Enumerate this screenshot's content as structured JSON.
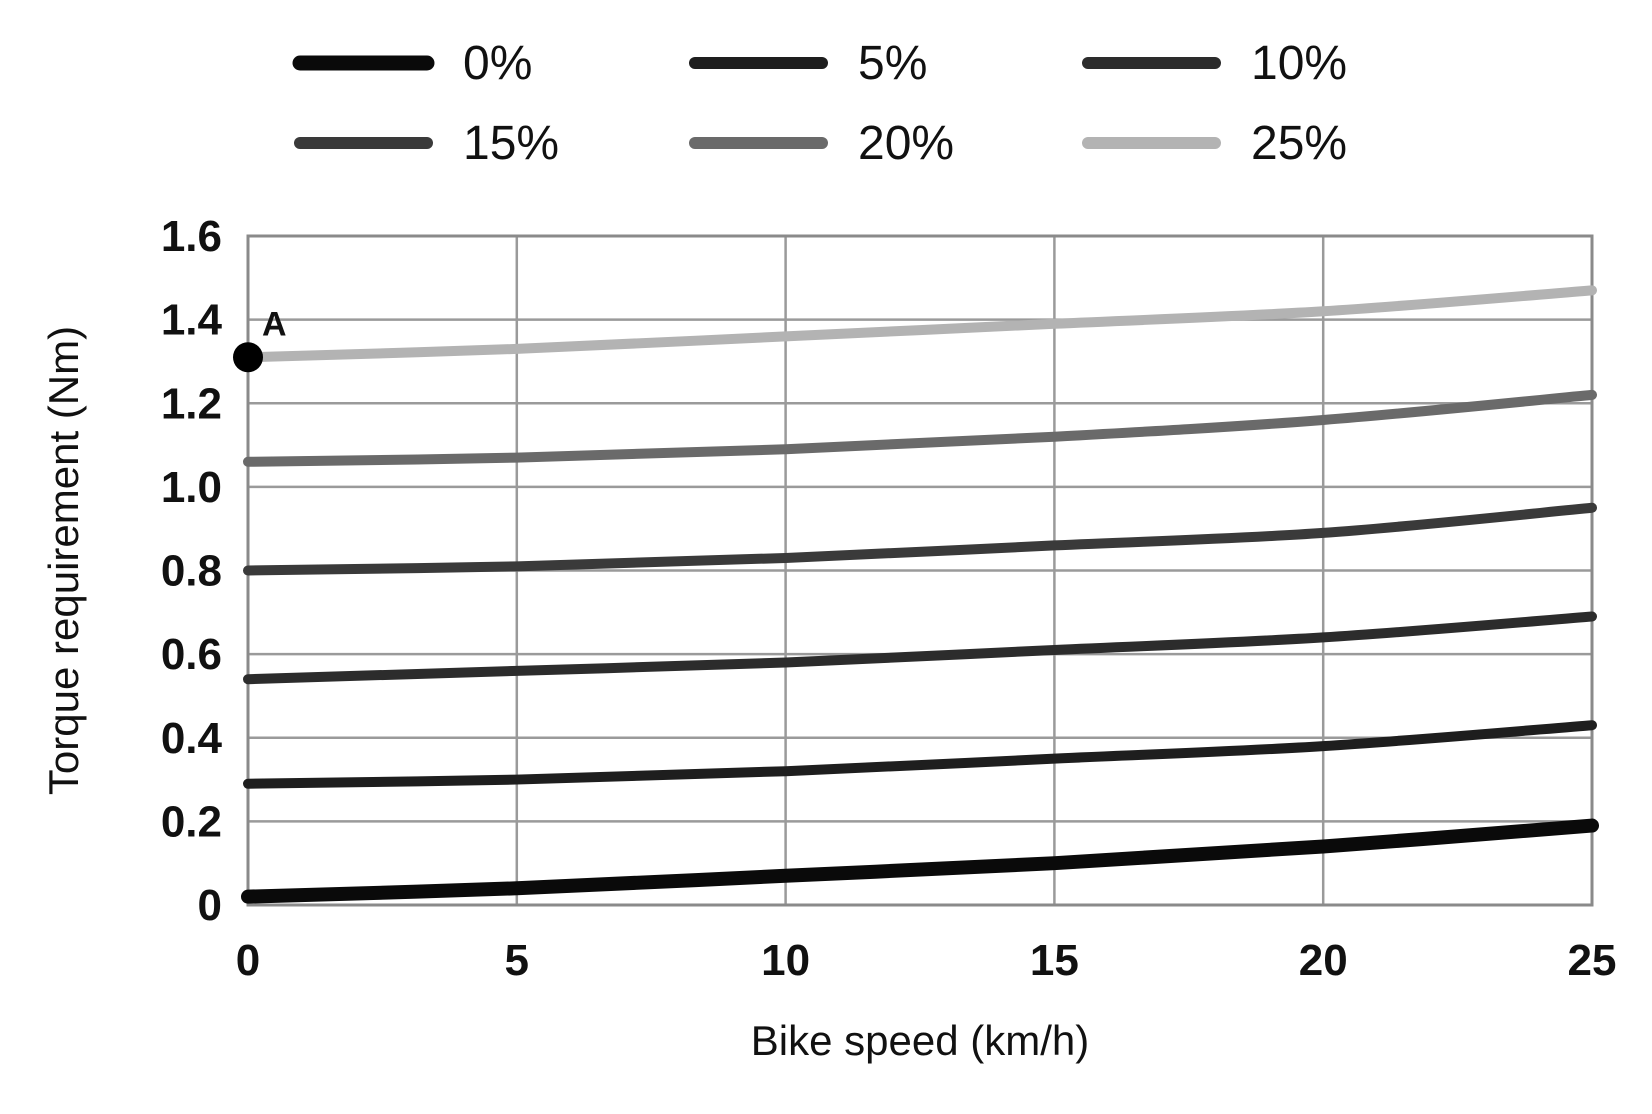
{
  "chart_data": {
    "type": "line",
    "title": "",
    "xlabel": "Bike speed (km/h)",
    "ylabel": "Torque requirement (Nm)",
    "xlim": [
      0,
      25
    ],
    "ylim": [
      0,
      1.6
    ],
    "grid": true,
    "legend_position": "top",
    "x_ticks": [
      0,
      5,
      10,
      15,
      20,
      25
    ],
    "x_tick_labels": [
      "0",
      "5",
      "10",
      "15",
      "20",
      "25"
    ],
    "y_ticks": [
      0,
      0.2,
      0.4,
      0.6,
      0.8,
      1.0,
      1.2,
      1.4,
      1.6
    ],
    "y_tick_labels": [
      "0",
      "0.2",
      "0.4",
      "0.6",
      "0.8",
      "1.0",
      "1.2",
      "1.4",
      "1.6"
    ],
    "x": [
      0,
      5,
      10,
      15,
      20,
      25
    ],
    "series": [
      {
        "name": "0%",
        "color": "#0a0a0a",
        "values": [
          0.02,
          0.04,
          0.07,
          0.1,
          0.14,
          0.19
        ]
      },
      {
        "name": "5%",
        "color": "#1e1e1e",
        "values": [
          0.29,
          0.3,
          0.32,
          0.35,
          0.38,
          0.43
        ]
      },
      {
        "name": "10%",
        "color": "#2c2c2c",
        "values": [
          0.54,
          0.56,
          0.58,
          0.61,
          0.64,
          0.69
        ]
      },
      {
        "name": "15%",
        "color": "#3a3a3a",
        "values": [
          0.8,
          0.81,
          0.83,
          0.86,
          0.89,
          0.95
        ]
      },
      {
        "name": "20%",
        "color": "#6a6a6a",
        "values": [
          1.06,
          1.07,
          1.09,
          1.12,
          1.16,
          1.22
        ]
      },
      {
        "name": "25%",
        "color": "#b3b3b3",
        "values": [
          1.31,
          1.33,
          1.36,
          1.39,
          1.42,
          1.47
        ]
      }
    ],
    "annotations": [
      {
        "label": "A",
        "x": 0,
        "y": 1.31
      }
    ]
  }
}
